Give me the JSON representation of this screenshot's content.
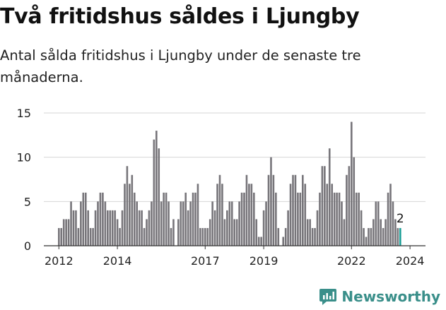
{
  "title": "Två fritidshus såldes i Ljungby",
  "subtitle": "Antal sålda fritidshus i Ljungby under de senaste tre månaderna.",
  "brand": {
    "name": "Newsworthy",
    "icon": "newsworthy-logo-icon",
    "color": "#3a8f8a"
  },
  "chart_data": {
    "type": "bar",
    "title": "Två fritidshus såldes i Ljungby",
    "xlabel": "",
    "ylabel": "",
    "ylim": [
      0,
      15
    ],
    "y_ticks": [
      0,
      5,
      10,
      15
    ],
    "x_tick_labels": [
      "2012",
      "2014",
      "2017",
      "2019",
      "2022",
      "2024"
    ],
    "grid": "horizontal",
    "colors": {
      "bar": "#77757a",
      "highlight": "#1a9e97"
    },
    "annotation": {
      "label": "2",
      "target": "last"
    },
    "values": [
      2,
      2,
      3,
      3,
      3,
      5,
      4,
      4,
      2,
      5,
      6,
      6,
      4,
      2,
      2,
      4,
      5,
      6,
      6,
      5,
      4,
      4,
      4,
      4,
      3,
      2,
      4,
      7,
      9,
      7,
      8,
      6,
      5,
      4,
      4,
      2,
      3,
      4,
      5,
      12,
      13,
      11,
      5,
      6,
      6,
      5,
      2,
      3,
      0,
      3,
      5,
      5,
      6,
      4,
      5,
      6,
      6,
      7,
      2,
      2,
      2,
      2,
      3,
      5,
      4,
      7,
      8,
      7,
      3,
      4,
      5,
      5,
      3,
      3,
      5,
      6,
      6,
      8,
      7,
      7,
      6,
      3,
      1,
      1,
      4,
      5,
      8,
      10,
      8,
      6,
      2,
      0,
      1,
      2,
      4,
      7,
      8,
      8,
      6,
      6,
      8,
      7,
      3,
      3,
      2,
      2,
      4,
      6,
      9,
      9,
      7,
      11,
      7,
      6,
      6,
      6,
      5,
      3,
      8,
      9,
      14,
      10,
      6,
      6,
      4,
      2,
      1,
      2,
      2,
      3,
      5,
      5,
      3,
      2,
      3,
      6,
      7,
      5,
      3,
      2,
      2
    ]
  }
}
